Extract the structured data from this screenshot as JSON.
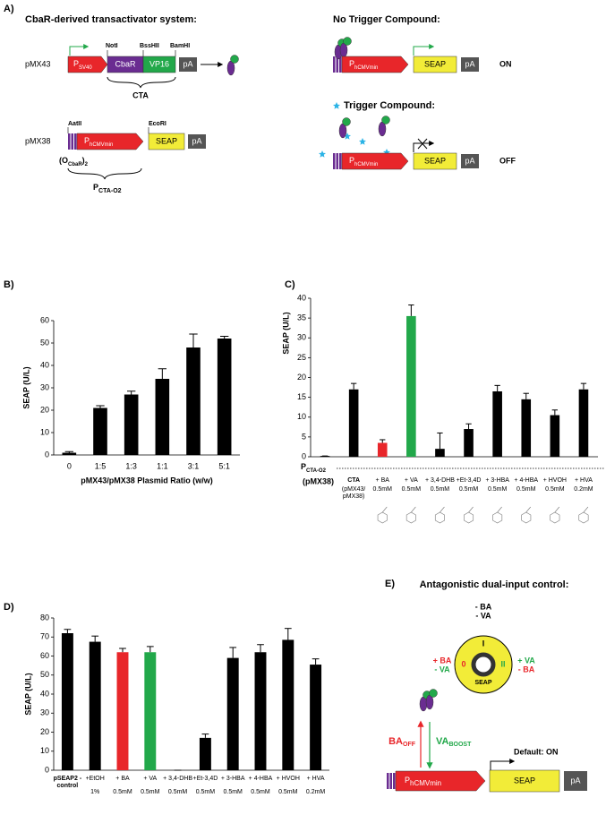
{
  "panel_a": {
    "label": "A)",
    "title_left": "CbaR-derived transactivator system:",
    "title_right": "No Trigger Compound:",
    "trigger": "Trigger Compound:",
    "pmx43": {
      "name": "pMX43",
      "promoter": {
        "main": "P",
        "sub": "SV40"
      },
      "sites": [
        "NotI",
        "BssHII",
        "BamHI"
      ],
      "cbar": "CbaR",
      "vp16": "VP16",
      "pa": "pA",
      "cta": "CTA"
    },
    "pmx38": {
      "name": "pMX38",
      "sites": [
        "AatII",
        "EcoRI"
      ],
      "promoter": {
        "main": "P",
        "sub": "hCMVmin"
      },
      "seap": "SEAP",
      "pa": "pA",
      "operator": [
        "(O",
        "CbaR",
        ")",
        "2"
      ],
      "p_cta": {
        "main": "P",
        "sub": "CTA-O2"
      }
    },
    "on_construct": {
      "promoter": {
        "main": "P",
        "sub": "hCMVmin"
      },
      "seap": "SEAP",
      "pa": "pA",
      "state": "ON"
    },
    "off_construct": {
      "promoter": {
        "main": "P",
        "sub": "hCMVmin"
      },
      "seap": "SEAP",
      "pa": "pA",
      "state": "OFF"
    }
  },
  "chart_data": [
    {
      "type": "bar",
      "panel": "B)",
      "xlabel": "pMX43/pMX38 Plasmid Ratio (w/w)",
      "ylabel": "SEAP (U/L)",
      "categories": [
        "0",
        "1:5",
        "1:3",
        "1:1",
        "3:1",
        "5:1"
      ],
      "values": [
        1,
        21,
        27,
        34,
        48,
        52
      ],
      "errors": [
        0.5,
        1,
        1.5,
        4.5,
        6,
        1
      ],
      "color": "#000000",
      "ylim": [
        0,
        60
      ],
      "yticks": [
        0,
        10,
        20,
        30,
        40,
        50,
        60
      ]
    },
    {
      "type": "bar",
      "panel": "C)",
      "ylabel": "SEAP (U/L)",
      "row_label": {
        "main": "P",
        "sub": "CTA-O2"
      },
      "row_sublabel": "(pMX38)",
      "categories": [
        null,
        "CTA",
        "+ BA",
        "+ VA",
        "+ 3,4-DHB",
        "+Et-3,4D",
        "+ 3-HBA",
        "+ 4-HBA",
        "+ HVOH",
        "+ HVA"
      ],
      "concentrations": [
        null,
        "(pMX43/ pMX38)",
        "0.5mM",
        "0.5mM",
        "0.5mM",
        "0.5mM",
        "0.5mM",
        "0.5mM",
        "0.5mM",
        "0.2mM"
      ],
      "values": [
        0.2,
        17,
        3.5,
        35.5,
        2,
        7,
        16.5,
        14.5,
        10.5,
        17
      ],
      "errors": [
        0,
        1.5,
        0.8,
        2.8,
        4,
        1.3,
        1.5,
        1.5,
        1.3,
        1.5
      ],
      "colors": [
        "#000000",
        "#000000",
        "#e8262a",
        "#22a84a",
        "#000000",
        "#000000",
        "#000000",
        "#000000",
        "#000000",
        "#000000"
      ],
      "ylim": [
        0,
        40
      ],
      "yticks": [
        0,
        5,
        10,
        15,
        20,
        25,
        30,
        35,
        40
      ]
    },
    {
      "type": "bar",
      "panel": "D)",
      "ylabel": "SEAP (U/L)",
      "categories": [
        "pSEAP2 -control",
        "+EtOH",
        "+ BA",
        "+ VA",
        "+ 3,4-DHB",
        "+Et-3,4D",
        "+ 3-HBA",
        "+ 4-HBA",
        "+ HVOH",
        "+ HVA"
      ],
      "concentrations": [
        null,
        "1%",
        "0.5mM",
        "0.5mM",
        "0.5mM",
        "0.5mM",
        "0.5mM",
        "0.5mM",
        "0.5mM",
        "0.2mM"
      ],
      "values": [
        72,
        67.5,
        62,
        62,
        0,
        17,
        59,
        62,
        68.5,
        55.5
      ],
      "errors": [
        2,
        3,
        2,
        3,
        0,
        2,
        5.5,
        4,
        6,
        3
      ],
      "colors": [
        "#000000",
        "#000000",
        "#e8262a",
        "#22a84a",
        "#000000",
        "#000000",
        "#000000",
        "#000000",
        "#000000",
        "#000000"
      ],
      "ylim": [
        0,
        80
      ],
      "yticks": [
        0,
        10,
        20,
        30,
        40,
        50,
        60,
        70,
        80
      ]
    }
  ],
  "panel_e": {
    "label": "E)",
    "title": "Antagonistic dual-input control:",
    "top": [
      "- BA",
      "- VA"
    ],
    "left": [
      "+ BA",
      "- VA"
    ],
    "right": [
      "+ VA",
      "- BA"
    ],
    "positions": [
      "I",
      "0",
      "II"
    ],
    "dial": "SEAP",
    "ba": {
      "main": "BA",
      "sub": "OFF"
    },
    "va": {
      "main": "VA",
      "sub": "BOOST"
    },
    "default": "Default: ON",
    "promoter": {
      "main": "P",
      "sub": "hCMVmin"
    },
    "seap": "SEAP",
    "pa": "pA"
  }
}
